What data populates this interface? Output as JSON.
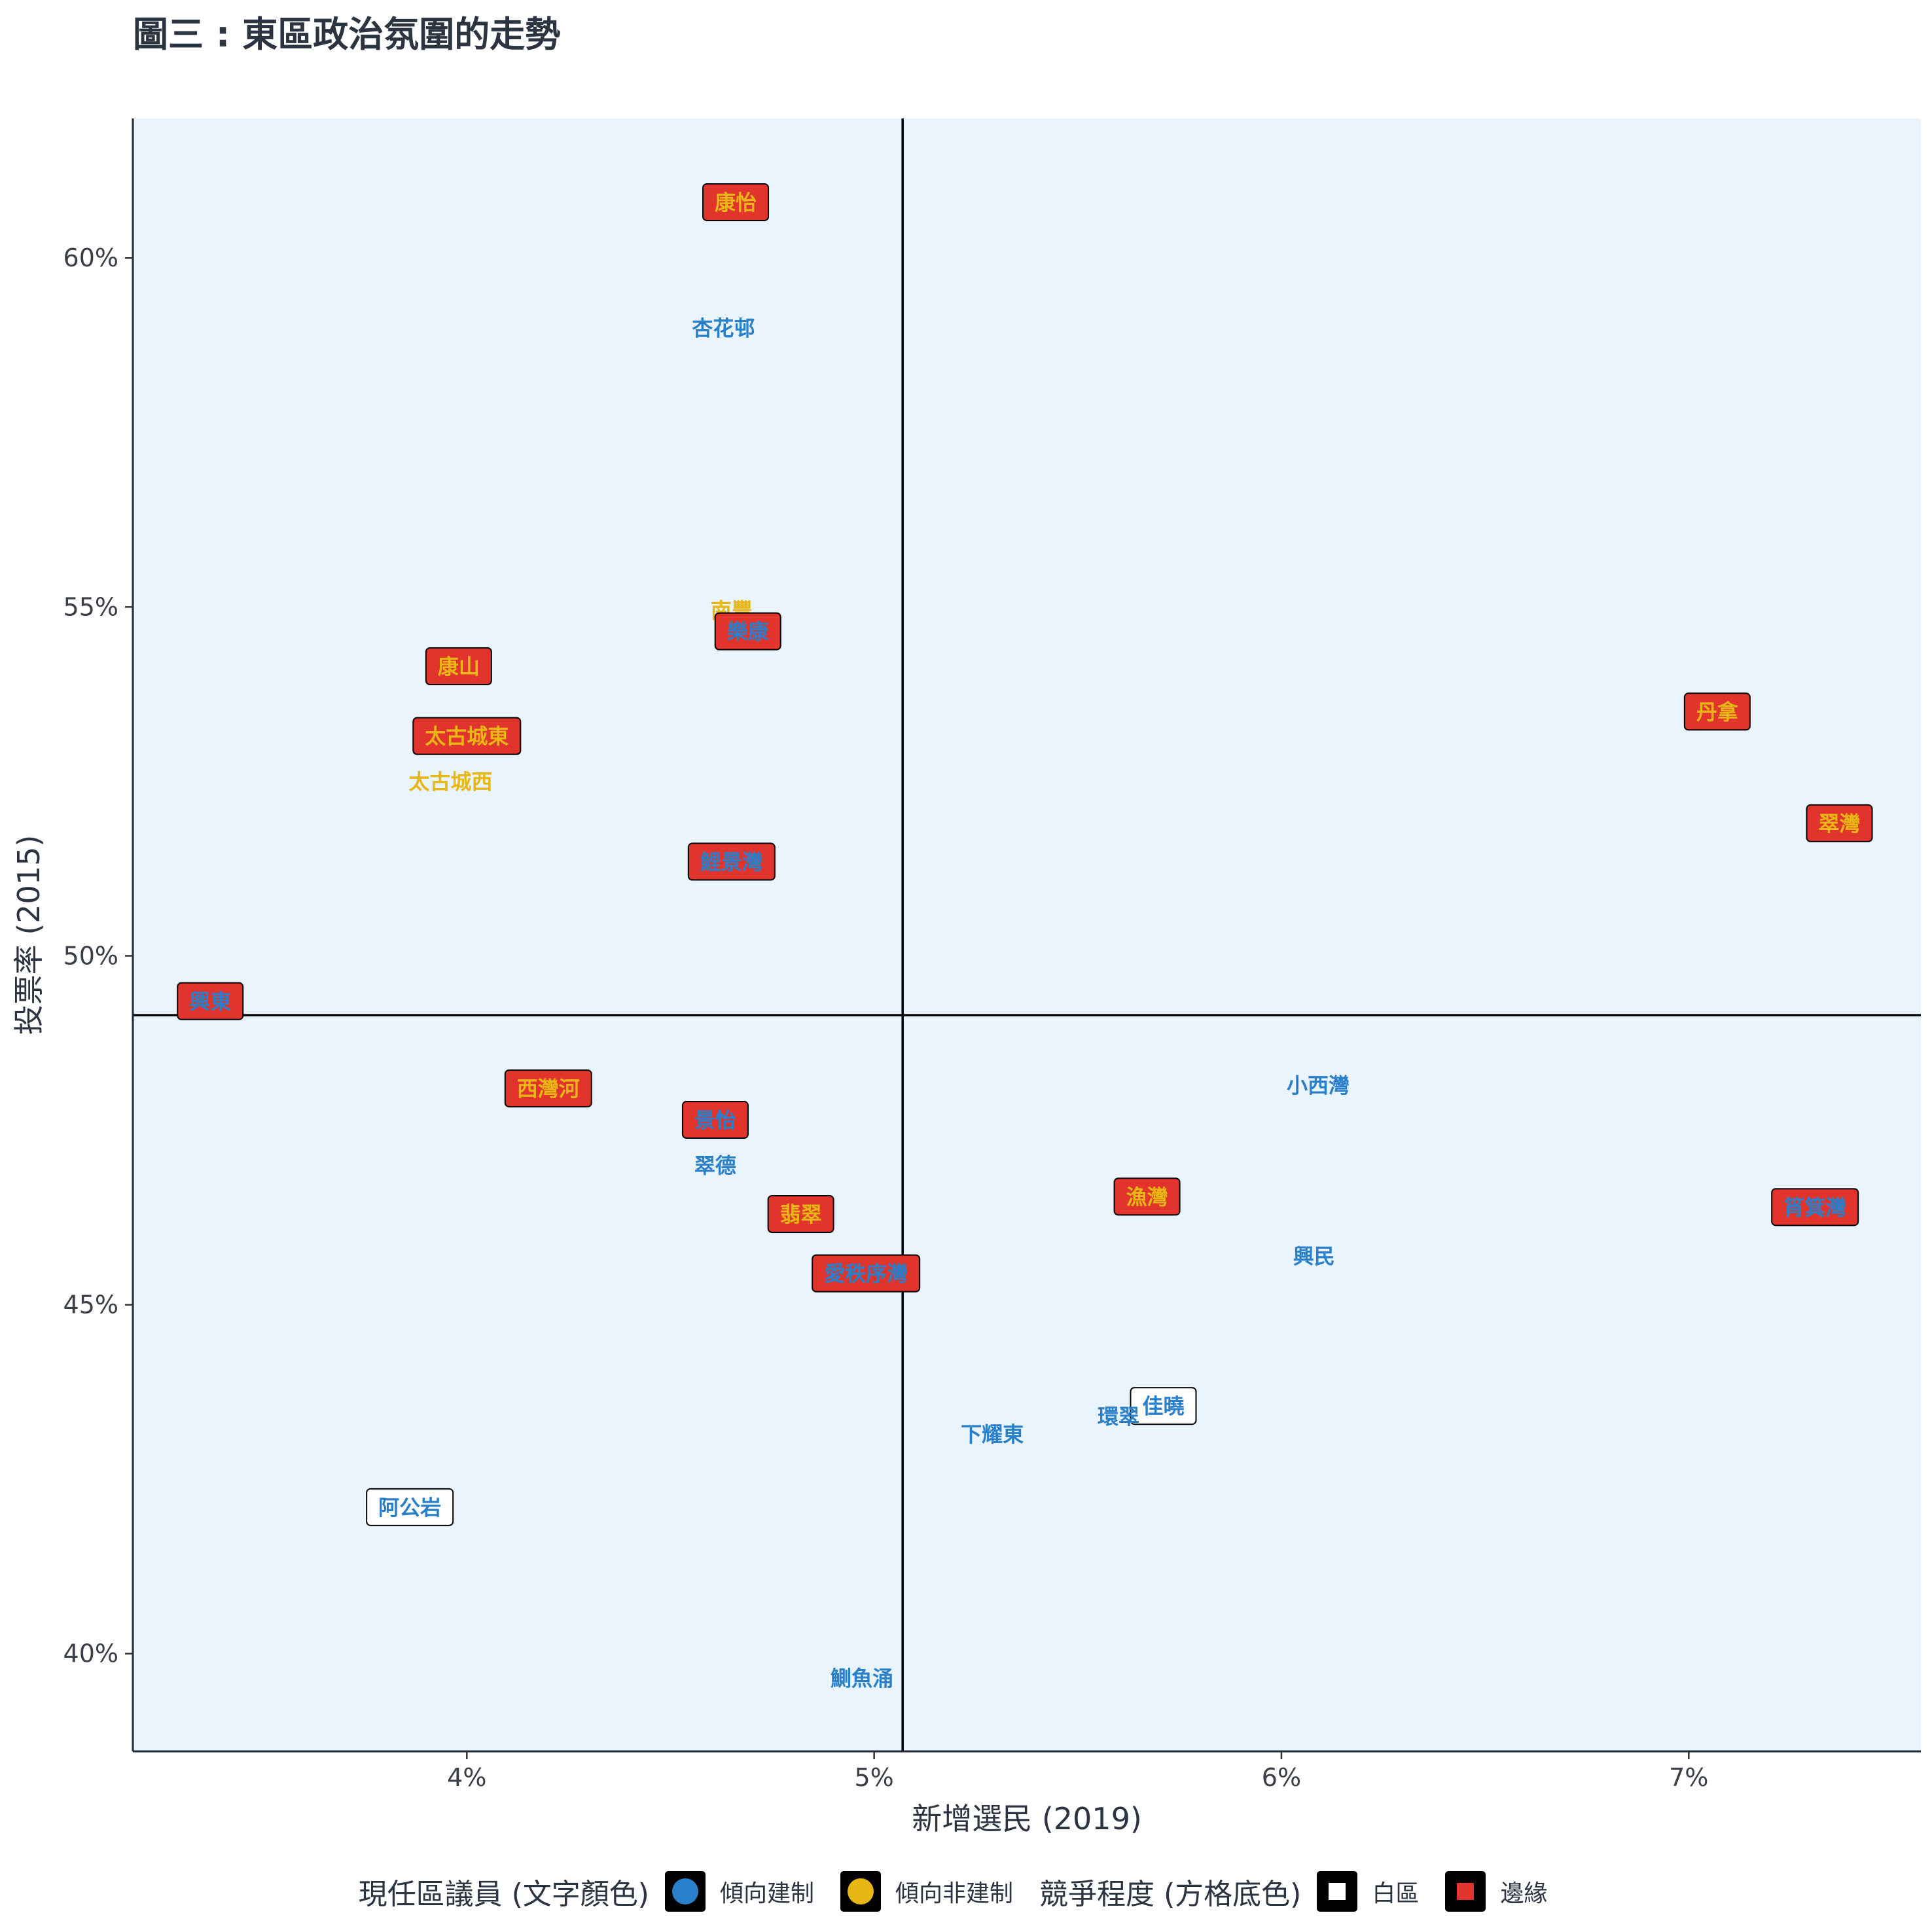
{
  "title": "圖三 : 東區政治氛圍的走勢",
  "chart_data": {
    "type": "scatter",
    "title": "圖三 : 東區政治氛圍的走勢",
    "xlabel": "新增選民 (2019)",
    "ylabel": "投票率 (2015)",
    "xlim": [
      3.18,
      7.57
    ],
    "ylim": [
      38.6,
      62.0
    ],
    "x_ticks": [
      4,
      5,
      6,
      7
    ],
    "x_tick_labels": [
      "4%",
      "5%",
      "6%",
      "7%"
    ],
    "y_ticks": [
      40,
      45,
      50,
      55,
      60
    ],
    "y_tick_labels": [
      "40%",
      "45%",
      "50%",
      "55%",
      "60%"
    ],
    "reference_lines": {
      "x": 5.07,
      "y": 49.15
    },
    "plot_background": "#eaf4fc",
    "colors": {
      "establishment": "#2a7fcb",
      "non_establishment": "#e8b615",
      "white": "#ffffff",
      "marginal": "#e0342c"
    },
    "points": [
      {
        "label": "康怡",
        "x": 4.66,
        "y": 60.8,
        "camp": "non_establishment",
        "box": "marginal"
      },
      {
        "label": "杏花邨",
        "x": 4.63,
        "y": 59.0,
        "camp": "establishment",
        "box": "none"
      },
      {
        "label": "南豐",
        "x": 4.65,
        "y": 54.95,
        "camp": "non_establishment",
        "box": "none"
      },
      {
        "label": "樂康",
        "x": 4.69,
        "y": 54.65,
        "camp": "establishment",
        "box": "marginal"
      },
      {
        "label": "康山",
        "x": 3.98,
        "y": 54.15,
        "camp": "non_establishment",
        "box": "marginal"
      },
      {
        "label": "太古城東",
        "x": 4.0,
        "y": 53.15,
        "camp": "non_establishment",
        "box": "marginal"
      },
      {
        "label": "太古城西",
        "x": 3.96,
        "y": 52.5,
        "camp": "non_establishment",
        "box": "none"
      },
      {
        "label": "鯉景灣",
        "x": 4.65,
        "y": 51.35,
        "camp": "establishment",
        "box": "marginal"
      },
      {
        "label": "丹拿",
        "x": 7.07,
        "y": 53.5,
        "camp": "non_establishment",
        "box": "marginal"
      },
      {
        "label": "翠灣",
        "x": 7.37,
        "y": 51.9,
        "camp": "non_establishment",
        "box": "marginal"
      },
      {
        "label": "興東",
        "x": 3.37,
        "y": 49.35,
        "camp": "establishment",
        "box": "marginal"
      },
      {
        "label": "西灣河",
        "x": 4.2,
        "y": 48.1,
        "camp": "non_establishment",
        "box": "marginal"
      },
      {
        "label": "小西灣",
        "x": 6.09,
        "y": 48.15,
        "camp": "establishment",
        "box": "none"
      },
      {
        "label": "景怡",
        "x": 4.61,
        "y": 47.65,
        "camp": "establishment",
        "box": "marginal"
      },
      {
        "label": "翠德",
        "x": 4.61,
        "y": 47.0,
        "camp": "establishment",
        "box": "none"
      },
      {
        "label": "漁灣",
        "x": 5.67,
        "y": 46.55,
        "camp": "non_establishment",
        "box": "marginal"
      },
      {
        "label": "筲箕灣",
        "x": 7.31,
        "y": 46.4,
        "camp": "establishment",
        "box": "marginal"
      },
      {
        "label": "翡翠",
        "x": 4.82,
        "y": 46.3,
        "camp": "non_establishment",
        "box": "marginal"
      },
      {
        "label": "興民",
        "x": 6.08,
        "y": 45.7,
        "camp": "establishment",
        "box": "none"
      },
      {
        "label": "愛秩序灣",
        "x": 4.98,
        "y": 45.45,
        "camp": "establishment",
        "box": "marginal"
      },
      {
        "label": "佳曉",
        "x": 5.71,
        "y": 43.55,
        "camp": "establishment",
        "box": "white"
      },
      {
        "label": "環翠",
        "x": 5.6,
        "y": 43.4,
        "camp": "establishment",
        "box": "none"
      },
      {
        "label": "下耀東",
        "x": 5.29,
        "y": 43.15,
        "camp": "establishment",
        "box": "none"
      },
      {
        "label": "阿公岩",
        "x": 3.86,
        "y": 42.1,
        "camp": "establishment",
        "box": "white"
      },
      {
        "label": "鰂魚涌",
        "x": 4.97,
        "y": 39.65,
        "camp": "establishment",
        "box": "none"
      }
    ]
  },
  "legend": {
    "councillor_title": "現任區議員 (文字顏色)",
    "establishment": "傾向建制",
    "non_establishment": "傾向非建制",
    "competition_title": "競爭程度 (方格底色)",
    "white_zone": "白區",
    "marginal": "邊緣"
  }
}
